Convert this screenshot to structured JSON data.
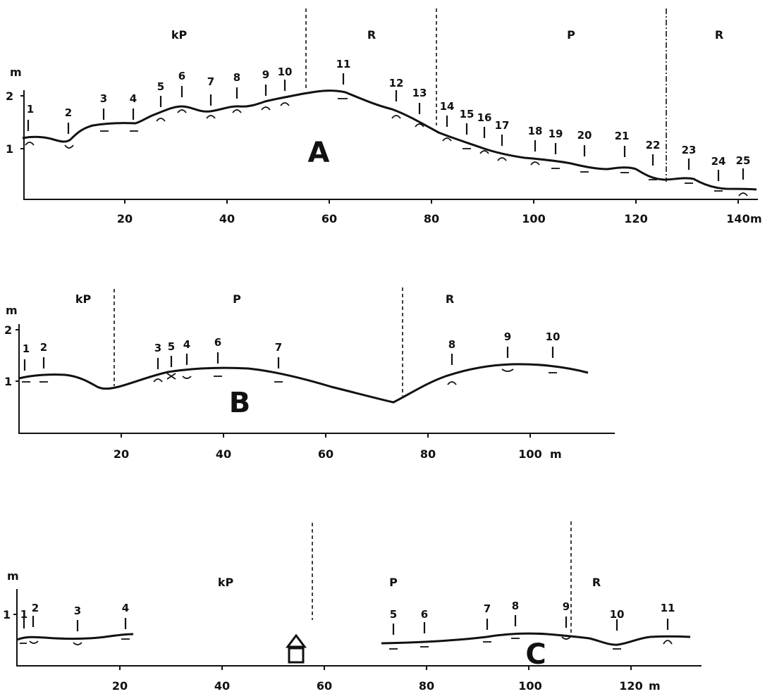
{
  "panels": [
    {
      "label": "A",
      "y_unit": "m",
      "x_unit": "m",
      "y_ticks": [
        "1",
        "2"
      ],
      "x_ticks": [
        "20",
        "40",
        "60",
        "80",
        "100",
        "120",
        "140"
      ],
      "zones": [
        "kP",
        "R",
        "P",
        "R"
      ],
      "stations": [
        "1",
        "2",
        "3",
        "4",
        "5",
        "6",
        "7",
        "8",
        "9",
        "10",
        "11",
        "12",
        "13",
        "14",
        "15",
        "16",
        "17",
        "18",
        "19",
        "20",
        "21",
        "22",
        "23",
        "24",
        "25"
      ]
    },
    {
      "label": "B",
      "y_unit": "m",
      "x_unit": "m",
      "y_ticks": [
        "1",
        "2"
      ],
      "x_ticks": [
        "20",
        "40",
        "60",
        "80",
        "100"
      ],
      "zones": [
        "kP",
        "P",
        "R"
      ],
      "stations": [
        "1",
        "2",
        "3",
        "5",
        "4",
        "6",
        "7",
        "8",
        "9",
        "10"
      ]
    },
    {
      "label": "C",
      "y_unit": "m",
      "x_unit": "m",
      "y_ticks": [
        "1"
      ],
      "x_ticks": [
        "20",
        "40",
        "60",
        "80",
        "100",
        "120"
      ],
      "zones": [
        "kP",
        "P",
        "R"
      ],
      "stations": [
        "1",
        "2",
        "3",
        "4",
        "5",
        "6",
        "7",
        "8",
        "9",
        "10",
        "11"
      ]
    }
  ],
  "icons": {
    "hut": "house-icon"
  }
}
